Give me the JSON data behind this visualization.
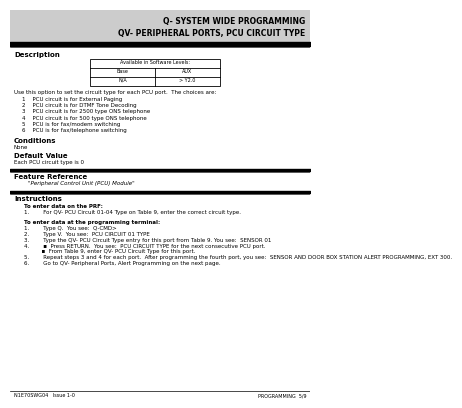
{
  "title_line1": "Q- SYSTEM WIDE PROGRAMMING",
  "title_line2": "QV- PERIPHERAL PORTS, PCU CIRCUIT TYPE",
  "section_description": "Description",
  "table_header": "Available in Software Levels:",
  "table_col1_header": "Base",
  "table_col2_header": "AUX",
  "table_row1_col1": "N/A",
  "table_row1_col2": "> Y2.0",
  "desc_text": "Use this option to set the circuit type for each PCU port.  The choices are:",
  "choices": [
    "1    PCU circuit is for External Paging",
    "2    PCU circuit is for DTMF Tone Decoding",
    "3    PCU circuit is for 2500 type ONS telephone",
    "4    PCU circuit is for 500 type ONS telephone",
    "5    PCU is for fax/modem switching",
    "6    PCU is for fax/telephone switching"
  ],
  "section_conditions": "Conditions",
  "conditions_text": "None",
  "section_default": "Default Value",
  "default_text": "Each PCU circuit type is 0",
  "section_feature": "Feature Reference",
  "feature_text": "\"Peripheral Control Unit (PCU) Module\"",
  "section_instructions": "Instructions",
  "instr_prf_header": "To enter data on the PRF:",
  "instr_prf_items": [
    "1.        For QV- PCU Circuit 01-04 Type on Table 9, enter the correct circuit type."
  ],
  "instr_term_header": "To enter data at the programming terminal:",
  "instr_term_items": [
    "1.        Type Q.  You see:  Q-CMD>",
    "2.        Type V.  You see:  PCU CIRCUIT 01 TYPE",
    "3.        Type the QV- PCU Circuit Type entry for this port from Table 9. You see:  SENSOR 01",
    "4.        ▪  Press RETURN.  You see:  PCU CIRCUIT TYPE for the next consecutive PCU port.",
    "          ▪  From Table 9, enter QV- PCU Circuit Type for this port.",
    "5.        Repeat steps 3 and 4 for each port.  After programming the fourth port, you see:  SENSOR AND DOOR BOX STATION ALERT PROGRAMMING, EXT 300.",
    "6.        Go to QV- Peripheral Ports, Alert Programming on the next page."
  ],
  "footer_left": "N1E70SWG04   Issue 1-0",
  "footer_right": "PROGRAMMING  5/9",
  "bg_color": "#ffffff",
  "text_color": "#000000"
}
